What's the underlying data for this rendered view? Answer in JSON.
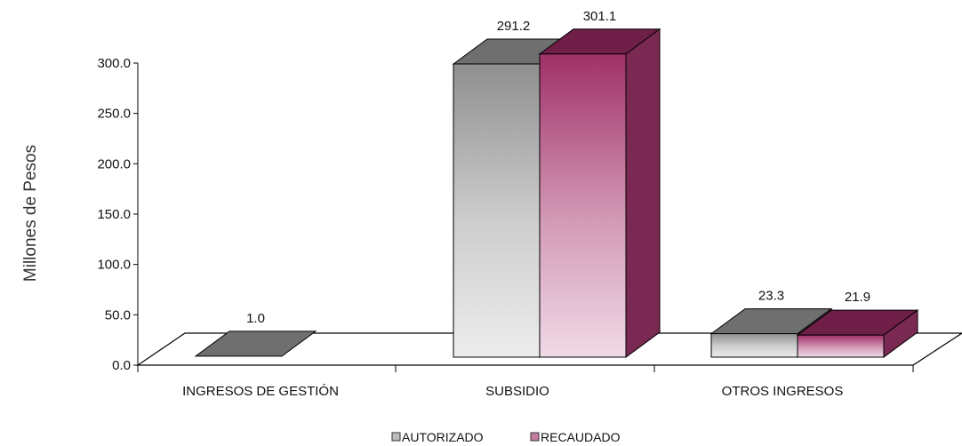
{
  "chart_data": {
    "type": "bar",
    "style": "3d-clustered-column",
    "title": "",
    "xlabel": "",
    "ylabel": "Millones de Pesos",
    "ylim": [
      0,
      300
    ],
    "yticks": [
      "0.0",
      "50.0",
      "100.0",
      "150.0",
      "200.0",
      "250.0",
      "300.0"
    ],
    "categories": [
      "INGRESOS DE GESTIÓN",
      "SUBSIDIO",
      "OTROS INGRESOS"
    ],
    "series": [
      {
        "name": "AUTORIZADO",
        "values": [
          1.0,
          291.2,
          23.3
        ],
        "labels": [
          "1.0",
          "291.2",
          "23.3"
        ],
        "color": "#9a9a9a"
      },
      {
        "name": "RECAUDADO",
        "values": [
          null,
          301.1,
          21.9
        ],
        "labels": [
          "",
          "301.1",
          "21.9"
        ],
        "color": "#8e2a5e"
      }
    ],
    "legend": "bottom",
    "grid": false
  }
}
